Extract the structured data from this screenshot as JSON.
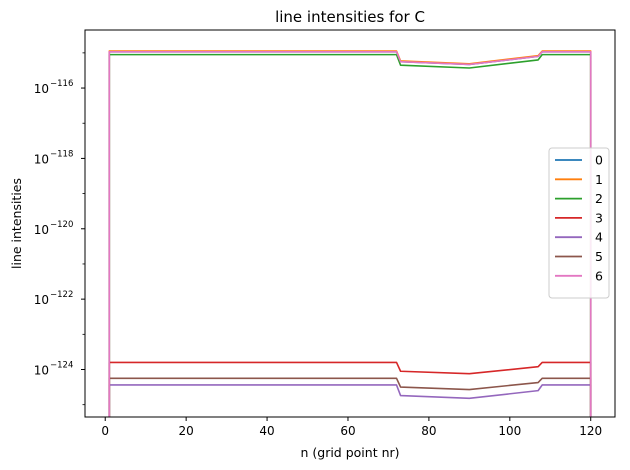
{
  "chart_data": {
    "type": "line",
    "title": "line intensities for C",
    "xlabel": "n (grid point nr)",
    "ylabel": "line intensities",
    "x_scale": "linear",
    "y_scale": "log",
    "xlim": [
      -5,
      126
    ],
    "ylim_log10": [
      -125.35,
      -114.35
    ],
    "grid": false,
    "legend_position": "center-right",
    "x_ticks": [
      {
        "value": 0,
        "label": "0"
      },
      {
        "value": 20,
        "label": "20"
      },
      {
        "value": 40,
        "label": "40"
      },
      {
        "value": 60,
        "label": "60"
      },
      {
        "value": 80,
        "label": "80"
      },
      {
        "value": 100,
        "label": "100"
      },
      {
        "value": 120,
        "label": "120"
      }
    ],
    "y_ticks": [
      {
        "exp": -116,
        "base": "10",
        "label": "−116"
      },
      {
        "exp": -118,
        "base": "10",
        "label": "−118"
      },
      {
        "exp": -120,
        "base": "10",
        "label": "−120"
      },
      {
        "exp": -122,
        "base": "10",
        "label": "−122"
      },
      {
        "exp": -124,
        "base": "10",
        "label": "−124"
      }
    ],
    "series": [
      {
        "name": "0",
        "color": "#1f77b4",
        "x": [
          1,
          1,
          72,
          73,
          90,
          107,
          108,
          120,
          120
        ],
        "log10_y": [
          -125.35,
          -114.97,
          -114.97,
          -115.25,
          -115.33,
          -115.1,
          -114.97,
          -114.97,
          -125.35
        ]
      },
      {
        "name": "1",
        "color": "#ff7f0e",
        "x": [
          1,
          1,
          72,
          73,
          90,
          107,
          108,
          120,
          120
        ],
        "log10_y": [
          -125.35,
          -114.95,
          -114.95,
          -115.23,
          -115.31,
          -115.08,
          -114.95,
          -114.95,
          -125.35
        ]
      },
      {
        "name": "2",
        "color": "#2ca02c",
        "x": [
          1,
          1,
          72,
          73,
          90,
          107,
          108,
          120,
          120
        ],
        "log10_y": [
          -125.35,
          -115.05,
          -115.05,
          -115.35,
          -115.43,
          -115.2,
          -115.05,
          -115.05,
          -125.35
        ]
      },
      {
        "name": "3",
        "color": "#d62728",
        "x": [
          1,
          1,
          72,
          73,
          90,
          107,
          108,
          120,
          120
        ],
        "log10_y": [
          -125.35,
          -123.8,
          -123.8,
          -124.05,
          -124.12,
          -123.92,
          -123.8,
          -123.8,
          -125.35
        ]
      },
      {
        "name": "4",
        "color": "#9467bd",
        "x": [
          1,
          1,
          72,
          73,
          90,
          107,
          108,
          120,
          120
        ],
        "log10_y": [
          -125.35,
          -124.44,
          -124.44,
          -124.74,
          -124.82,
          -124.6,
          -124.44,
          -124.44,
          -125.35
        ]
      },
      {
        "name": "5",
        "color": "#8c564b",
        "x": [
          1,
          1,
          72,
          73,
          90,
          107,
          108,
          120,
          120
        ],
        "log10_y": [
          -125.35,
          -124.25,
          -124.25,
          -124.5,
          -124.57,
          -124.37,
          -124.25,
          -124.25,
          -125.35
        ]
      },
      {
        "name": "6",
        "color": "#e377c2",
        "x": [
          1,
          1,
          72,
          73,
          90,
          107,
          108,
          120,
          120
        ],
        "log10_y": [
          -125.35,
          -114.97,
          -114.97,
          -115.25,
          -115.33,
          -115.1,
          -114.97,
          -114.97,
          -125.35
        ]
      }
    ]
  }
}
